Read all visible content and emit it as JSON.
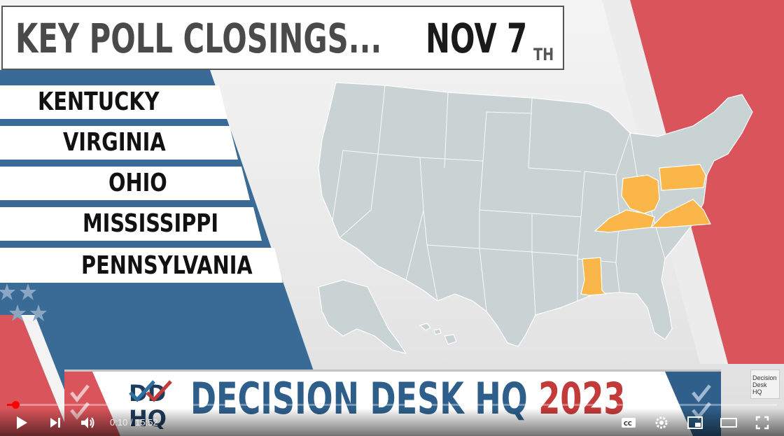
{
  "title": {
    "heading": "KEY POLL CLOSINGS...",
    "date": "NOV 7",
    "date_suffix": "TH"
  },
  "states": [
    "KENTUCKY",
    "VIRGINIA",
    "OHIO",
    "MISSISSIPPI",
    "PENNSYLVANIA"
  ],
  "colors": {
    "highlight": "#fbb649",
    "map_fill": "#c9d3d4",
    "blue": "#3a6b96",
    "red": "#d9555b"
  },
  "banner": {
    "brand": "DECISION DESK HQ",
    "year": "2023",
    "logo_line1": "DD",
    "logo_line2": "HQ"
  },
  "corner_logo": {
    "line1": "Decision",
    "line2": "Desk HQ"
  },
  "player": {
    "time_current": "0:10",
    "time_total": "15:52",
    "time_display": "0:10 / 15:52",
    "progress_fraction": 0.0105
  }
}
